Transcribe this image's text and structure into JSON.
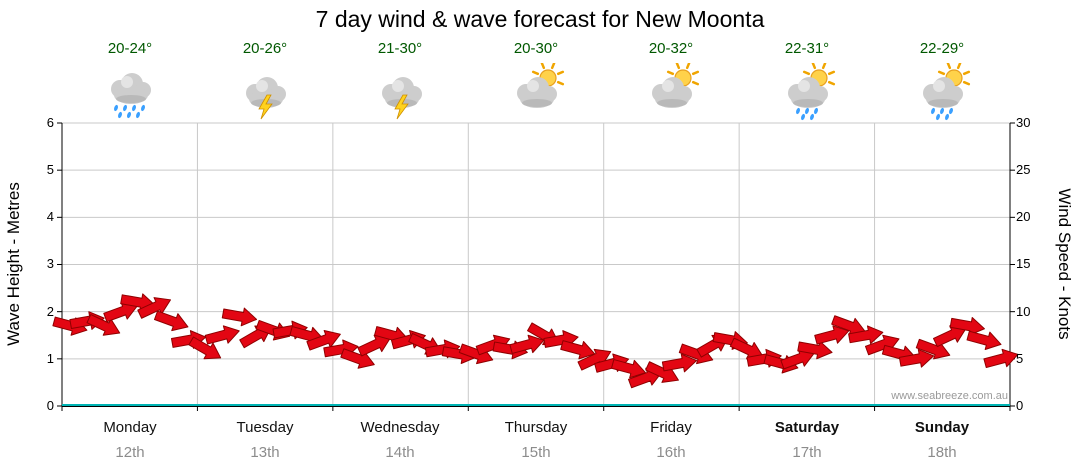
{
  "title": "7 day wind & wave forecast for New Moonta",
  "watermark": "www.seabreeze.com.au",
  "days": [
    {
      "name": "Monday",
      "date": "12th",
      "temp": "20-24°",
      "icon": "rain"
    },
    {
      "name": "Tuesday",
      "date": "13th",
      "temp": "20-26°",
      "icon": "storm"
    },
    {
      "name": "Wednesday",
      "date": "14th",
      "temp": "21-30°",
      "icon": "storm"
    },
    {
      "name": "Thursday",
      "date": "15th",
      "temp": "20-30°",
      "icon": "sun-cloud"
    },
    {
      "name": "Friday",
      "date": "16th",
      "temp": "20-32°",
      "icon": "sun-cloud"
    },
    {
      "name": "Saturday",
      "date": "17th",
      "temp": "22-31°",
      "icon": "sun-cloud-rain"
    },
    {
      "name": "Sunday",
      "date": "18th",
      "temp": "22-29°",
      "icon": "sun-cloud-rain"
    }
  ],
  "axes": {
    "left_label": "Wave Height - Metres",
    "right_label": "Wind Speed - Knots",
    "left_ticks": [
      "0",
      "1",
      "2",
      "3",
      "4",
      "5",
      "6"
    ],
    "right_ticks": [
      "0",
      "5",
      "10",
      "15",
      "20",
      "25",
      "30"
    ]
  },
  "colors": {
    "arrow_fill": "#e30613",
    "arrow_outline": "#8f0000",
    "baseline": "#00b4b4",
    "grid": "#c9c9c9",
    "axis": "#000000",
    "temp_text": "#005800",
    "date_text": "#8c8c8c",
    "sun": "#ffd24a",
    "cloud": "#cdcdcd",
    "raindrop": "#3aa0ff",
    "lightning": "#ffd21e"
  },
  "chart_data": {
    "type": "line",
    "mark": "wind-arrows",
    "title": "7 day wind & wave forecast for New Moonta",
    "xlabel": "",
    "ylabel_left": "Wave Height - Metres",
    "ylabel_right": "Wind Speed - Knots",
    "ylim_left": [
      0,
      6
    ],
    "ylim_right": [
      0,
      30
    ],
    "grid": true,
    "legend": "none",
    "points_per_day": 8,
    "x_categories": [
      "Monday 12th",
      "Tuesday 13th",
      "Wednesday 14th",
      "Thursday 15th",
      "Friday 16th",
      "Saturday 17th",
      "Sunday 18th"
    ],
    "series": [
      {
        "name": "Wave Height (m)",
        "axis": "left",
        "values": [
          1.7,
          1.8,
          1.7,
          2.0,
          2.2,
          2.1,
          1.8,
          1.4,
          1.2,
          1.5,
          1.9,
          1.5,
          1.6,
          1.6,
          1.5,
          1.4,
          1.2,
          1.0,
          1.3,
          1.5,
          1.4,
          1.3,
          1.2,
          1.1,
          1.1,
          1.3,
          1.2,
          1.3,
          1.5,
          1.4,
          1.2,
          1.0,
          0.9,
          0.8,
          0.6,
          0.7,
          0.9,
          1.1,
          1.3,
          1.4,
          1.2,
          1.0,
          0.9,
          1.0,
          1.2,
          1.5,
          1.7,
          1.5,
          1.3,
          1.1,
          1.0,
          1.2,
          1.5,
          1.7,
          1.4,
          1.0
        ]
      },
      {
        "name": "Wind Speed (knots)",
        "axis": "right",
        "values": [
          8.5,
          9,
          8.5,
          10,
          11,
          10.5,
          9,
          7,
          6,
          7.5,
          9.5,
          7.5,
          8,
          8,
          7.5,
          7,
          6,
          5,
          6.5,
          7.5,
          7,
          6.5,
          6,
          5.5,
          5.5,
          6.5,
          6,
          6.5,
          7.5,
          7,
          6,
          5,
          4.5,
          4,
          3,
          3.5,
          4.5,
          5.5,
          6.5,
          7,
          6,
          5,
          4.5,
          5,
          6,
          7.5,
          8.5,
          7.5,
          6.5,
          5.5,
          5,
          6,
          7.5,
          8.5,
          7,
          5
        ]
      },
      {
        "name": "Arrow rotation (deg)",
        "axis": "none",
        "values": [
          15,
          -10,
          25,
          -20,
          10,
          -25,
          20,
          -10,
          30,
          -15,
          10,
          -30,
          20,
          -10,
          15,
          -20,
          -10,
          20,
          -25,
          15,
          -15,
          25,
          -10,
          10,
          20,
          -20,
          10,
          -15,
          30,
          -10,
          15,
          -25,
          -15,
          15,
          -20,
          25,
          -10,
          20,
          -30,
          10,
          25,
          -10,
          15,
          -20,
          10,
          -15,
          20,
          -10,
          -20,
          15,
          -10,
          20,
          -25,
          10,
          15,
          -15
        ]
      }
    ]
  }
}
